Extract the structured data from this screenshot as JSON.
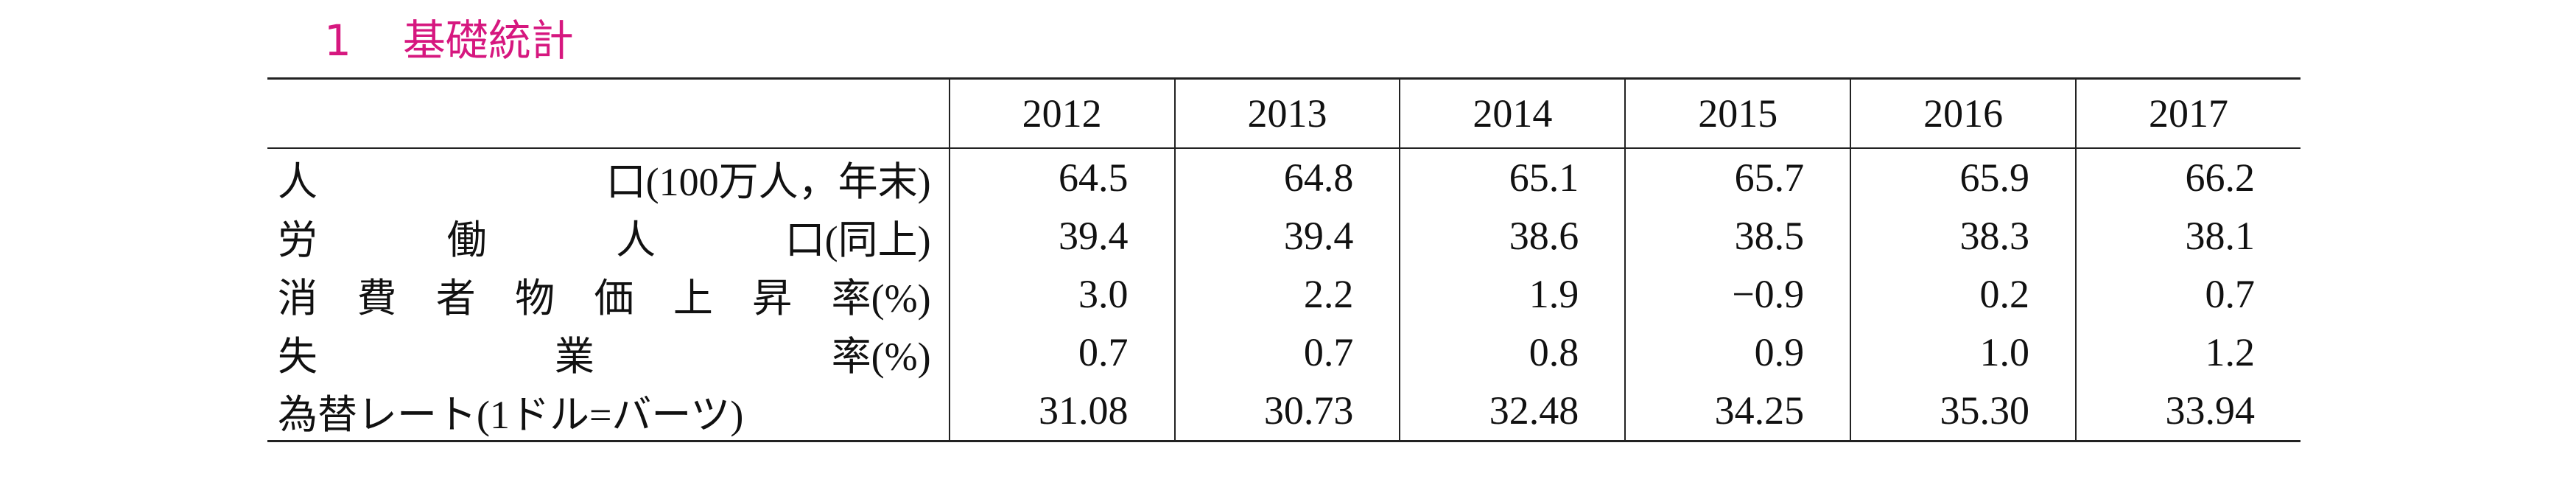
{
  "header": {
    "number": "1",
    "title": "基礎統計"
  },
  "table": {
    "columns": [
      "2012",
      "2013",
      "2014",
      "2015",
      "2016",
      "2017"
    ],
    "rows": [
      {
        "label": "人口(100万人，年末)",
        "values": [
          "64.5",
          "64.8",
          "65.1",
          "65.7",
          "65.9",
          "66.2"
        ]
      },
      {
        "label": "労働人口(同上)",
        "values": [
          "39.4",
          "39.4",
          "38.6",
          "38.5",
          "38.3",
          "38.1"
        ]
      },
      {
        "label": "消費者物価上昇率(%)",
        "values": [
          "3.0",
          "2.2",
          "1.9",
          "−0.9",
          "0.2",
          "0.7"
        ]
      },
      {
        "label": "失業率(%)",
        "values": [
          "0.7",
          "0.7",
          "0.8",
          "0.9",
          "1.0",
          "1.2"
        ]
      },
      {
        "label": "為替レート(1ドル=バーツ)",
        "values": [
          "31.08",
          "30.73",
          "32.48",
          "34.25",
          "35.30",
          "33.94"
        ]
      }
    ]
  }
}
